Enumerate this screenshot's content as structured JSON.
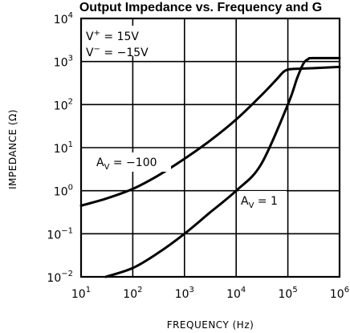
{
  "chart_data": {
    "type": "line",
    "title": "Output Impedance vs. Frequency and G",
    "xlabel": "FREQUENCY (Hz)",
    "ylabel": "IMPEDANCE (Ω)",
    "x_scale": "log",
    "y_scale": "log",
    "xlim": [
      10,
      1000000
    ],
    "ylim": [
      0.01,
      10000
    ],
    "grid": true,
    "x_ticks": [
      {
        "value": 10,
        "base": "10",
        "exp": "1"
      },
      {
        "value": 100,
        "base": "10",
        "exp": "2"
      },
      {
        "value": 1000,
        "base": "10",
        "exp": "3"
      },
      {
        "value": 10000,
        "base": "10",
        "exp": "4"
      },
      {
        "value": 100000,
        "base": "10",
        "exp": "5"
      },
      {
        "value": 1000000,
        "base": "10",
        "exp": "6"
      }
    ],
    "y_ticks": [
      {
        "value": 0.01,
        "base": "10",
        "exp": "−2"
      },
      {
        "value": 0.1,
        "base": "10",
        "exp": "−1"
      },
      {
        "value": 1,
        "base": "10",
        "exp": "0"
      },
      {
        "value": 10,
        "base": "10",
        "exp": "1"
      },
      {
        "value": 100,
        "base": "10",
        "exp": "2"
      },
      {
        "value": 1000,
        "base": "10",
        "exp": "3"
      },
      {
        "value": 10000,
        "base": "10",
        "exp": "4"
      }
    ],
    "conditions": {
      "vplus": {
        "main": "V",
        "sup": "+",
        "rest": " = 15V"
      },
      "vminus": {
        "main": "V",
        "sup": "−",
        "rest": " = −15V"
      }
    },
    "series": [
      {
        "name": "A_V = −100",
        "label": {
          "main": "A",
          "sub": "V",
          "rest": " = −100"
        },
        "x": [
          10,
          30,
          100,
          300,
          1000,
          3000,
          10000,
          30000,
          60000,
          80000,
          100000,
          150000,
          300000,
          1000000
        ],
        "y": [
          0.45,
          0.65,
          1.1,
          2.2,
          5.5,
          14,
          45,
          160,
          380,
          560,
          650,
          680,
          700,
          750
        ]
      },
      {
        "name": "A_V = 1",
        "label": {
          "main": "A",
          "sub": "V",
          "rest": " = 1"
        },
        "x": [
          30,
          100,
          300,
          1000,
          3000,
          10000,
          30000,
          100000,
          150000,
          200000,
          250000,
          300000,
          1000000
        ],
        "y": [
          0.01,
          0.016,
          0.035,
          0.1,
          0.3,
          1.0,
          4.0,
          100,
          400,
          900,
          1150,
          1200,
          1200
        ]
      }
    ]
  }
}
